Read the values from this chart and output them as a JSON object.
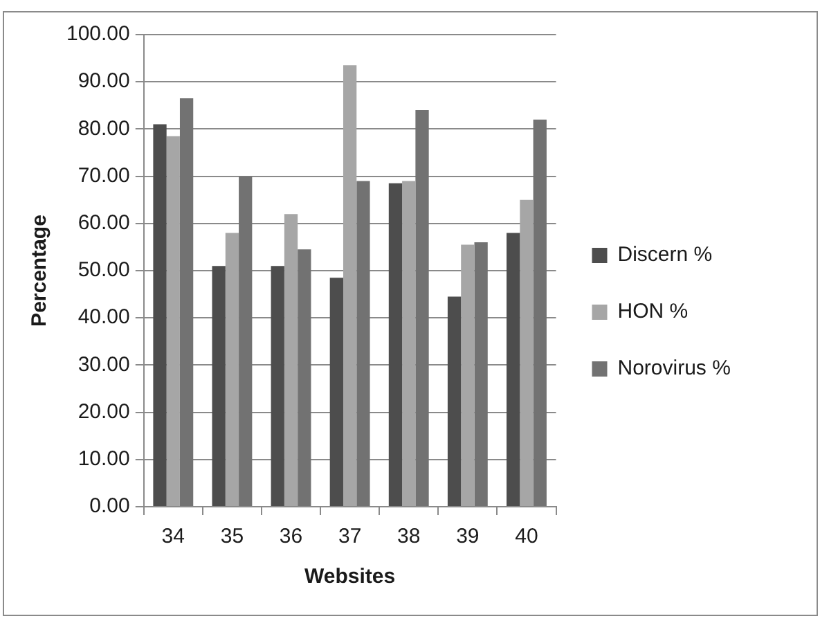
{
  "chart_data": {
    "type": "bar",
    "categories": [
      "34",
      "35",
      "36",
      "37",
      "38",
      "39",
      "40"
    ],
    "series": [
      {
        "name": "Discern %",
        "color": "#4d4d4d",
        "values": [
          81,
          51,
          51,
          48.5,
          68.5,
          44.5,
          58
        ]
      },
      {
        "name": "HON %",
        "color": "#a6a6a6",
        "values": [
          78.5,
          58,
          62,
          93.5,
          69,
          55.5,
          65
        ]
      },
      {
        "name": "Norovirus %",
        "color": "#727272",
        "values": [
          86.5,
          70,
          54.5,
          69,
          84,
          56,
          82
        ]
      }
    ],
    "xlabel": "Websites",
    "ylabel": "Percentage",
    "ylim": [
      0,
      100
    ],
    "yticks": [
      {
        "value": 0,
        "label": "0.00"
      },
      {
        "value": 10,
        "label": "10.00"
      },
      {
        "value": 20,
        "label": "20.00"
      },
      {
        "value": 30,
        "label": "30.00"
      },
      {
        "value": 40,
        "label": "40.00"
      },
      {
        "value": 50,
        "label": "50.00"
      },
      {
        "value": 60,
        "label": "60.00"
      },
      {
        "value": 70,
        "label": "70.00"
      },
      {
        "value": 80,
        "label": "80.00"
      },
      {
        "value": 90,
        "label": "90.00"
      },
      {
        "value": 100,
        "label": "100.00"
      }
    ],
    "grid": "y",
    "legend": "right"
  }
}
